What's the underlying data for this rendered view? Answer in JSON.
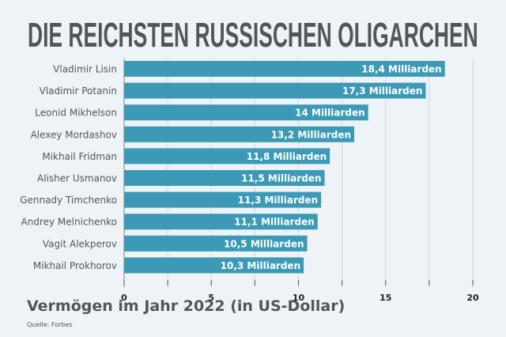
{
  "chart_data": {
    "type": "bar",
    "orientation": "horizontal",
    "title": "DIE REICHSTEN RUSSISCHEN OLIGARCHEN",
    "xlabel": "Vermögen im Jahr 2022 (in US-Dollar)",
    "source": "Quelle: Forbes",
    "categories": [
      "Vladimir Lisin",
      "Vladimir Potanin",
      "Leonid Mikhelson",
      "Alexey Mordashov",
      "Mikhail Fridman",
      "Alisher Usmanov",
      "Gennady Timchenko",
      "Andrey Melnichenko",
      "Vagit Alekperov",
      "Mikhail Prokhorov"
    ],
    "values": [
      18.4,
      17.3,
      14,
      13.2,
      11.8,
      11.5,
      11.3,
      11.1,
      10.5,
      10.3
    ],
    "data_labels": [
      "18,4 Milliarden",
      "17,3 Milliarden",
      "14 Milliarden",
      "13,2 Milliarden",
      "11,8 Milliarden",
      "11,5 Milliarden",
      "11,3 Milliarden",
      "11,1 Milliarden",
      "10,5 Milliarden",
      "10,3 Milliarden"
    ],
    "xlim": [
      0,
      20
    ],
    "xticks": [
      "0",
      "5",
      "10",
      "15",
      "20"
    ],
    "grid": true,
    "colors": {
      "bar": "#3d9ab6",
      "text": "#50565c",
      "background": "#edf3f6",
      "grid": "#d0d8dc"
    }
  }
}
